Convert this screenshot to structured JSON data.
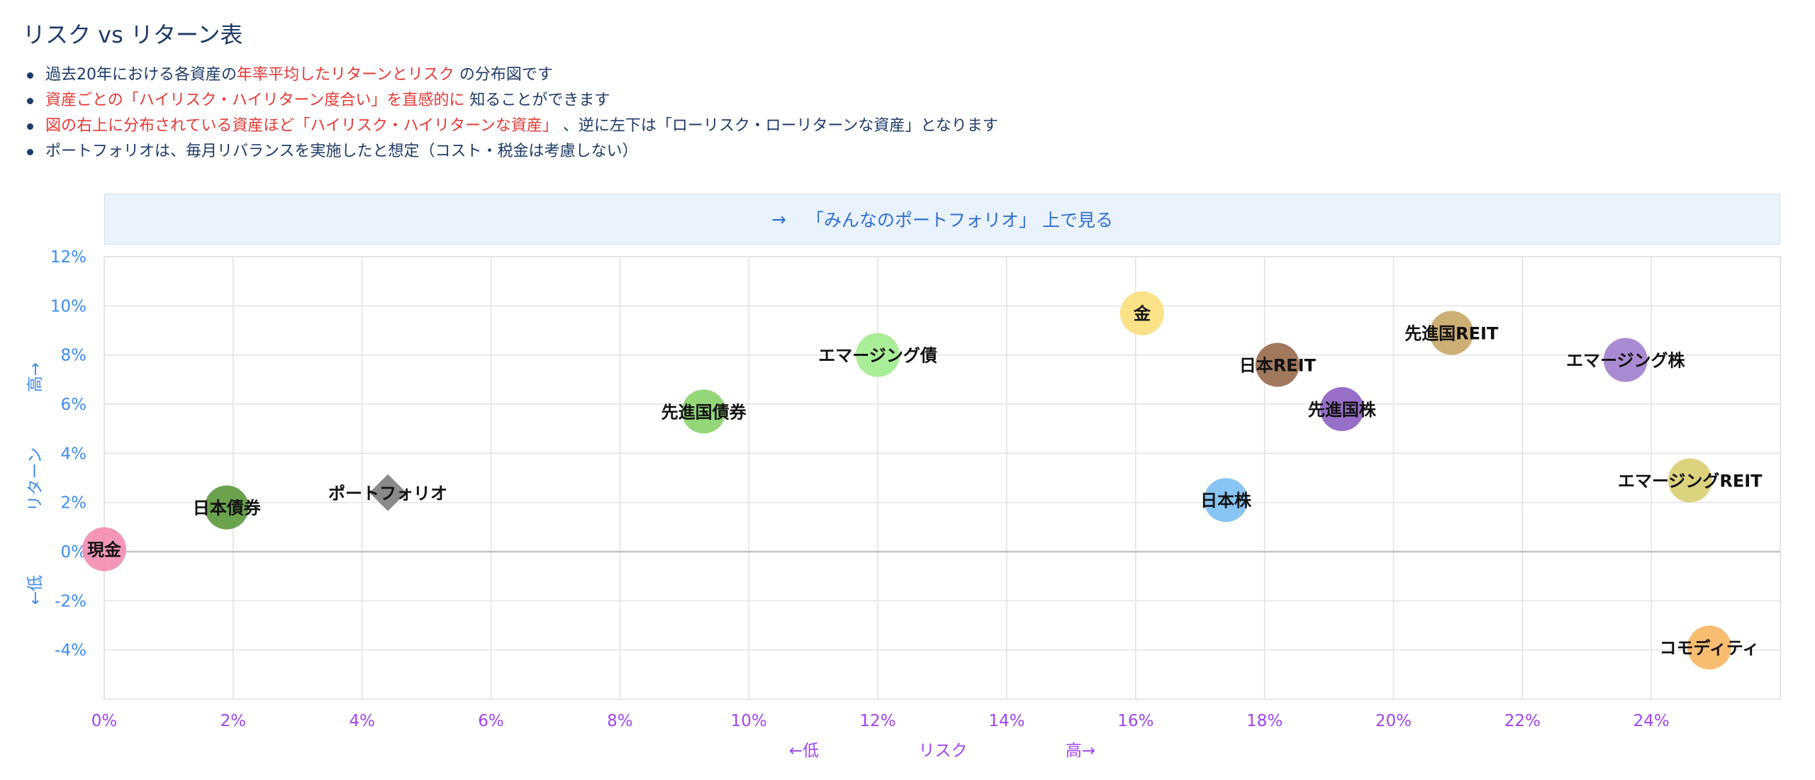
{
  "page": {
    "title": "リスク vs リターン表",
    "notes": [
      [
        {
          "text": "過去20年における各資産の",
          "red": false
        },
        {
          "text": "年率平均したリターンとリスク",
          "red": true
        },
        {
          "text": " の分布図です",
          "red": false
        }
      ],
      [
        {
          "text": "資産ごとの「ハイリスク・ハイリターン度合い」を直感的に",
          "red": true
        },
        {
          "text": " 知ることができます",
          "red": false
        }
      ],
      [
        {
          "text": "図の右上に分布されている資産ほど「ハイリスク・ハイリターンな資産」",
          "red": true
        },
        {
          "text": " 、逆に左下は「ローリスク・ローリターンな資産」となります",
          "red": false
        }
      ],
      [
        {
          "text": "ポートフォリオは、毎月リバランスを実施したと想定（コスト・税金は考慮しない）",
          "red": false
        }
      ]
    ],
    "link": {
      "arrow": "→",
      "label": "「みんなのポートフォリオ」 上で見る"
    }
  },
  "chart_data": {
    "type": "scatter",
    "x_unit": "%",
    "y_unit": "%",
    "xlim": [
      0,
      26
    ],
    "ylim": [
      -6,
      12
    ],
    "xticks": [
      0,
      2,
      4,
      6,
      8,
      10,
      12,
      14,
      16,
      18,
      20,
      22,
      24
    ],
    "yticks": [
      -4,
      -2,
      0,
      2,
      4,
      6,
      8,
      10,
      12
    ],
    "xlabel": {
      "low": "←低",
      "main": "リスク",
      "high": "高→"
    },
    "ylabel": {
      "low": "←低",
      "main": "リターン",
      "high": "高→"
    },
    "grid": true,
    "points": [
      {
        "name": "現金",
        "x": 0.0,
        "y": 0.1,
        "color": "#f28db2",
        "shape": "circle"
      },
      {
        "name": "日本債券",
        "x": 1.9,
        "y": 1.8,
        "color": "#5e9a3f",
        "shape": "circle"
      },
      {
        "name": "ポートフォリオ",
        "x": 4.4,
        "y": 2.4,
        "color": "#8a8a8a",
        "shape": "diamond"
      },
      {
        "name": "先進国債券",
        "x": 9.3,
        "y": 5.7,
        "color": "#8ad46e",
        "shape": "circle"
      },
      {
        "name": "エマージング債",
        "x": 12.0,
        "y": 8.0,
        "color": "#a3ec8f",
        "shape": "circle"
      },
      {
        "name": "金",
        "x": 16.1,
        "y": 9.7,
        "color": "#fbe07f",
        "shape": "circle"
      },
      {
        "name": "日本株",
        "x": 17.4,
        "y": 2.1,
        "color": "#7fc0f2",
        "shape": "circle"
      },
      {
        "name": "日本REIT",
        "x": 18.2,
        "y": 7.6,
        "color": "#9a6c4f",
        "shape": "circle"
      },
      {
        "name": "先進国株",
        "x": 19.2,
        "y": 5.8,
        "color": "#8e63c4",
        "shape": "circle"
      },
      {
        "name": "先進国REIT",
        "x": 20.9,
        "y": 8.9,
        "color": "#c9a86a",
        "shape": "circle"
      },
      {
        "name": "エマージング株",
        "x": 23.6,
        "y": 7.8,
        "color": "#a281cf",
        "shape": "circle"
      },
      {
        "name": "エマージングREIT",
        "x": 24.6,
        "y": 2.9,
        "color": "#d9cf74",
        "shape": "circle"
      },
      {
        "name": "コモディティ",
        "x": 24.9,
        "y": -3.9,
        "color": "#f7b765",
        "shape": "circle"
      }
    ]
  }
}
